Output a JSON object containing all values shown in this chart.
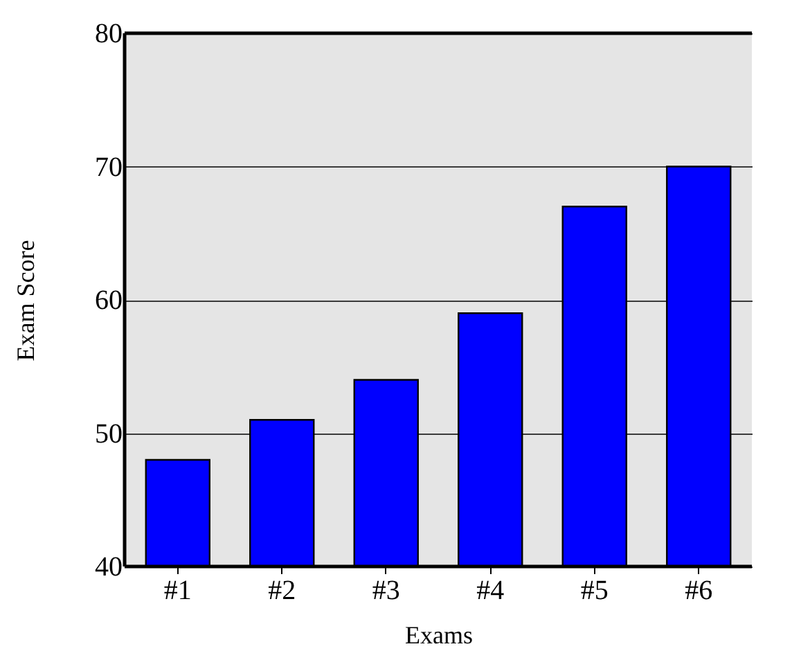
{
  "chart_data": {
    "type": "bar",
    "xlabel": "Exams",
    "ylabel": "Exam Score",
    "categories": [
      "#1",
      "#2",
      "#3",
      "#4",
      "#5",
      "#6"
    ],
    "values": [
      48,
      51,
      54,
      59,
      67,
      70
    ],
    "color": "#0000ff",
    "ylim": [
      40,
      80
    ],
    "yticks": [
      40,
      50,
      60,
      70,
      80
    ],
    "grid": "y"
  }
}
